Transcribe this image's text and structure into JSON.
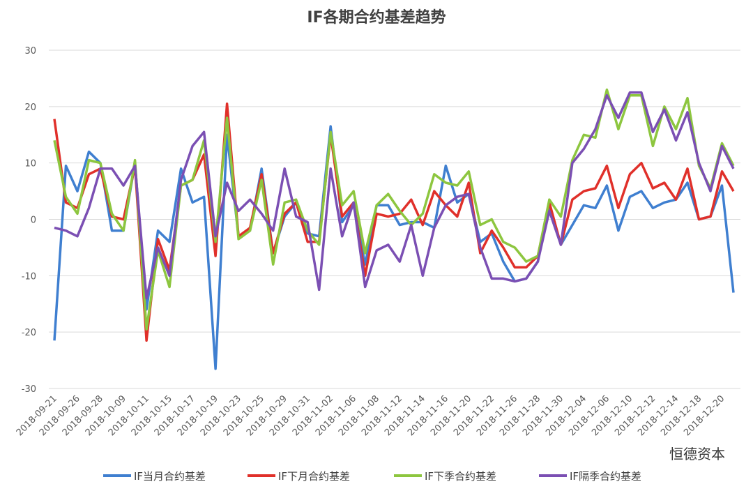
{
  "chart_data": {
    "type": "line",
    "title": "IF各期合约基差趋势",
    "watermark": "恒德资本",
    "categories": [
      "2018-09-21",
      null,
      "2018-09-26",
      null,
      "2018-09-28",
      null,
      "2018-10-09",
      null,
      "2018-10-11",
      null,
      "2018-10-15",
      null,
      "2018-10-17",
      null,
      "2018-10-19",
      null,
      "2018-10-23",
      null,
      "2018-10-25",
      null,
      "2018-10-29",
      null,
      "2018-10-31",
      null,
      "2018-11-02",
      null,
      "2018-11-06",
      null,
      "2018-11-08",
      null,
      "2018-11-12",
      null,
      "2018-11-14",
      null,
      "2018-11-16",
      null,
      "2018-11-20",
      null,
      "2018-11-22",
      null,
      "2018-11-26",
      null,
      "2018-11-28",
      null,
      "2018-11-30",
      null,
      "2018-12-04",
      null,
      "2018-12-06",
      null,
      "2018-12-10",
      null,
      "2018-12-12",
      null,
      "2018-12-14",
      null,
      "2018-12-18",
      null,
      "2018-12-20",
      null
    ],
    "series": [
      {
        "name": "IF当月合约基差",
        "color": "#3f7fd0",
        "values": [
          -21.5,
          9.5,
          5,
          12,
          10,
          -2,
          -2,
          10,
          -16,
          -2,
          -4,
          9,
          3,
          4,
          -26.5,
          15,
          -3,
          -2,
          9,
          -6,
          0.5,
          3,
          -2.5,
          -3,
          16.5,
          -0.5,
          2.5,
          -8,
          2.5,
          2.5,
          -1,
          -0.5,
          -0.5,
          -1.5,
          9.5,
          3,
          4.5,
          -4,
          -2.5,
          -7.5,
          -11,
          -10.5,
          -7.5,
          2.5,
          -4.5,
          -1,
          2.5,
          2,
          6,
          -2,
          4,
          5,
          2,
          3,
          3.5,
          6.5,
          0,
          0.5,
          6,
          -13
        ]
      },
      {
        "name": "IF下月合约基差",
        "color": "#e0302a",
        "values": [
          17.8,
          3,
          2,
          8,
          9,
          0.5,
          0,
          9.5,
          -21.5,
          -3.5,
          -9,
          6,
          7,
          11.5,
          -6.5,
          20.5,
          -3,
          -1.5,
          8,
          -6,
          1,
          3,
          -4,
          -4,
          15,
          0.5,
          3,
          -10,
          1,
          0.5,
          1,
          3.5,
          -1,
          5,
          2.5,
          0.5,
          6.5,
          -6,
          -2,
          -5,
          -8.5,
          -8.5,
          -6.5,
          3,
          -4.5,
          3.5,
          5,
          5.5,
          9.5,
          2,
          8,
          10,
          5.5,
          6.5,
          3.5,
          9,
          0,
          0.5,
          8.5,
          5
        ]
      },
      {
        "name": "IF下季合约基差",
        "color": "#8dc63f",
        "values": [
          14,
          4,
          1,
          10.5,
          10,
          1,
          -2,
          10.5,
          -19.5,
          -5.5,
          -12,
          6,
          7,
          14,
          -4,
          18,
          -3.5,
          -2,
          7,
          -8,
          3,
          3.5,
          -2,
          -4.5,
          15.5,
          2.5,
          5,
          -6,
          2.5,
          4.5,
          1.5,
          -1,
          1,
          8,
          6.5,
          6,
          8.5,
          -1,
          0,
          -4,
          -5,
          -7.5,
          -6.5,
          3.5,
          0.5,
          10.5,
          15,
          14.5,
          23,
          16,
          22,
          22,
          13,
          20,
          16,
          21.5,
          9.5,
          5.5,
          13.5,
          9.5
        ]
      },
      {
        "name": "IF隔季合约基差",
        "color": "#7b4fb3",
        "values": [
          -1.5,
          -2,
          -3,
          2,
          9,
          9,
          6,
          9.5,
          -14,
          -5,
          -10,
          7,
          13,
          15.5,
          -3,
          6.5,
          1.5,
          3.5,
          1,
          -2,
          9,
          0.5,
          -0.5,
          -12.5,
          9,
          -3,
          3,
          -12,
          -5.5,
          -4.5,
          -7.5,
          -1,
          -10,
          -1.5,
          2.5,
          4,
          4.5,
          -5,
          -10.5,
          -10.5,
          -11,
          -10.5,
          -7.5,
          1.5,
          -4.5,
          10,
          12.5,
          16,
          22,
          18,
          22.5,
          22.5,
          15.5,
          19.5,
          14,
          19,
          10,
          5,
          13,
          9
        ]
      }
    ],
    "ylim": [
      -30,
      30
    ],
    "yticks": [
      -30,
      -20,
      -10,
      0,
      10,
      20,
      30
    ],
    "grid": true
  }
}
